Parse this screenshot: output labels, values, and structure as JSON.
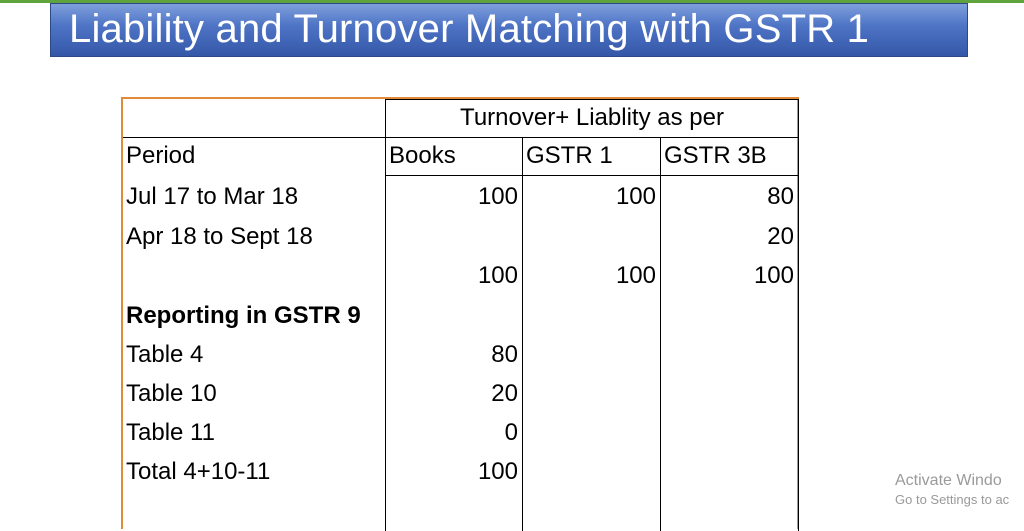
{
  "slide": {
    "title": "Liability and Turnover Matching with GSTR 1"
  },
  "table": {
    "group_header": "Turnover+ Liablity as per",
    "columns": [
      "Period",
      "Books",
      "GSTR 1",
      "GSTR 3B"
    ],
    "rows": [
      {
        "period": "Jul 17 to Mar 18",
        "books": "100",
        "gstr1": "100",
        "gstr3b": "80"
      },
      {
        "period": "Apr 18 to Sept 18",
        "books": "",
        "gstr1": "",
        "gstr3b": "20"
      },
      {
        "period": "",
        "books": "100",
        "gstr1": "100",
        "gstr3b": "100"
      },
      {
        "period": "Reporting in GSTR 9",
        "books": "",
        "gstr1": "",
        "gstr3b": ""
      },
      {
        "period": "Table 4",
        "books": "80",
        "gstr1": "",
        "gstr3b": ""
      },
      {
        "period": "Table 10",
        "books": "20",
        "gstr1": "",
        "gstr3b": ""
      },
      {
        "period": "Table 11",
        "books": "0",
        "gstr1": "",
        "gstr3b": ""
      },
      {
        "period": "Total 4+10-11",
        "books": "100",
        "gstr1": "",
        "gstr3b": ""
      }
    ]
  },
  "watermark": {
    "line1": "Activate Windo",
    "line2": "Go to Settings to ac"
  },
  "colors": {
    "banner": "#4f75c6",
    "sheet_border": "#e08a3a",
    "top_strip": "#5fa33f"
  }
}
